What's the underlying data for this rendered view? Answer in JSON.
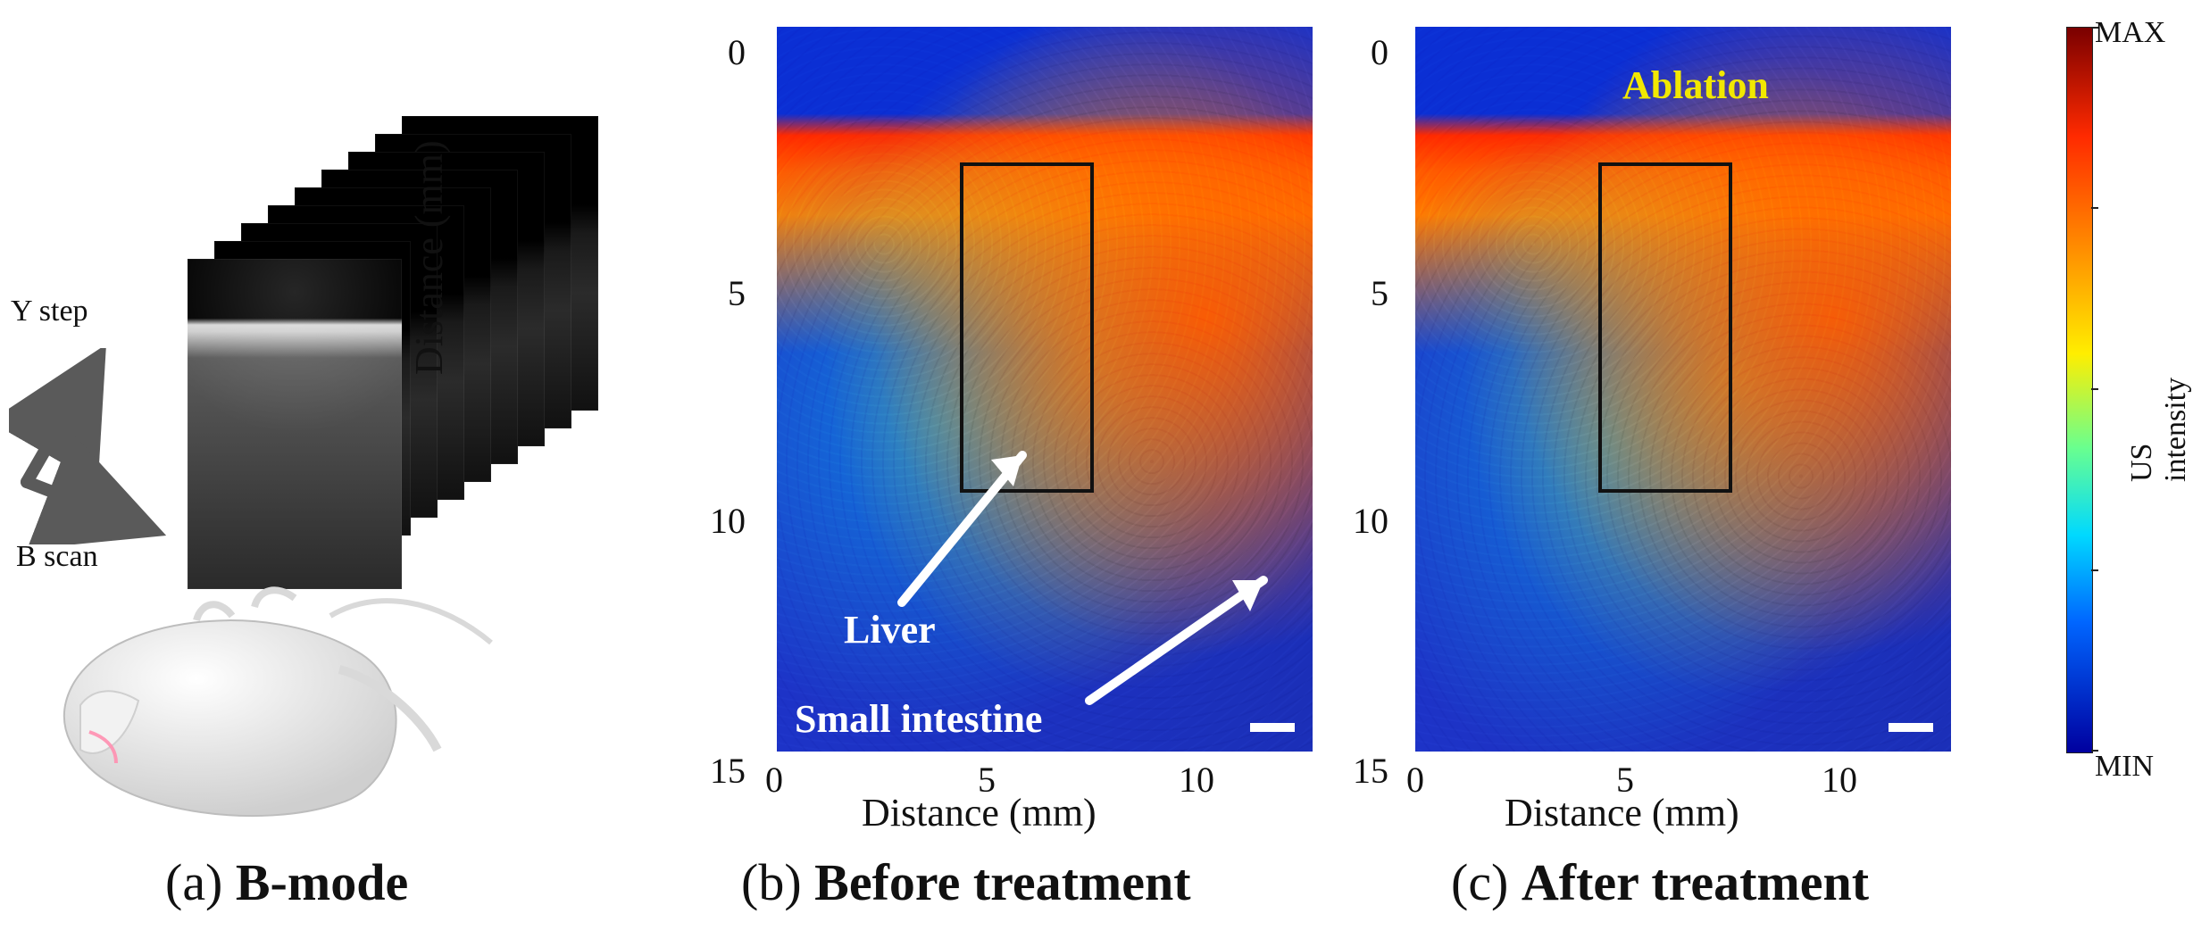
{
  "panel_a": {
    "labels": {
      "y_step": "Y step",
      "b_scan": "B scan"
    },
    "caption": {
      "prefix": "(a)",
      "bold": "B-mode"
    }
  },
  "panel_b": {
    "y_axis_label": "Distance (mm)",
    "x_axis_label": "Distance (mm)",
    "y_ticks": [
      "0",
      "5",
      "10",
      "15"
    ],
    "x_ticks": [
      "0",
      "5",
      "10"
    ],
    "annotations": {
      "liver": "Liver",
      "small_intestine": "Small intestine"
    },
    "caption": {
      "prefix": "(b)",
      "bold": "Before treatment"
    }
  },
  "panel_c": {
    "y_ticks": [
      "0",
      "5",
      "10",
      "15"
    ],
    "x_ticks": [
      "0",
      "5",
      "10"
    ],
    "x_axis_label": "Distance (mm)",
    "annotations": {
      "ablation": "Ablation"
    },
    "caption": {
      "prefix": "(c)",
      "bold": "After treatment"
    }
  },
  "colorbar": {
    "top_label": "MAX",
    "bottom_label": "MIN",
    "title": "US intensity"
  },
  "colors": {
    "ablation_text": "#f2e800",
    "roi_box": "#111111",
    "us_low": "#1d33c7",
    "us_high": "#d10000"
  }
}
